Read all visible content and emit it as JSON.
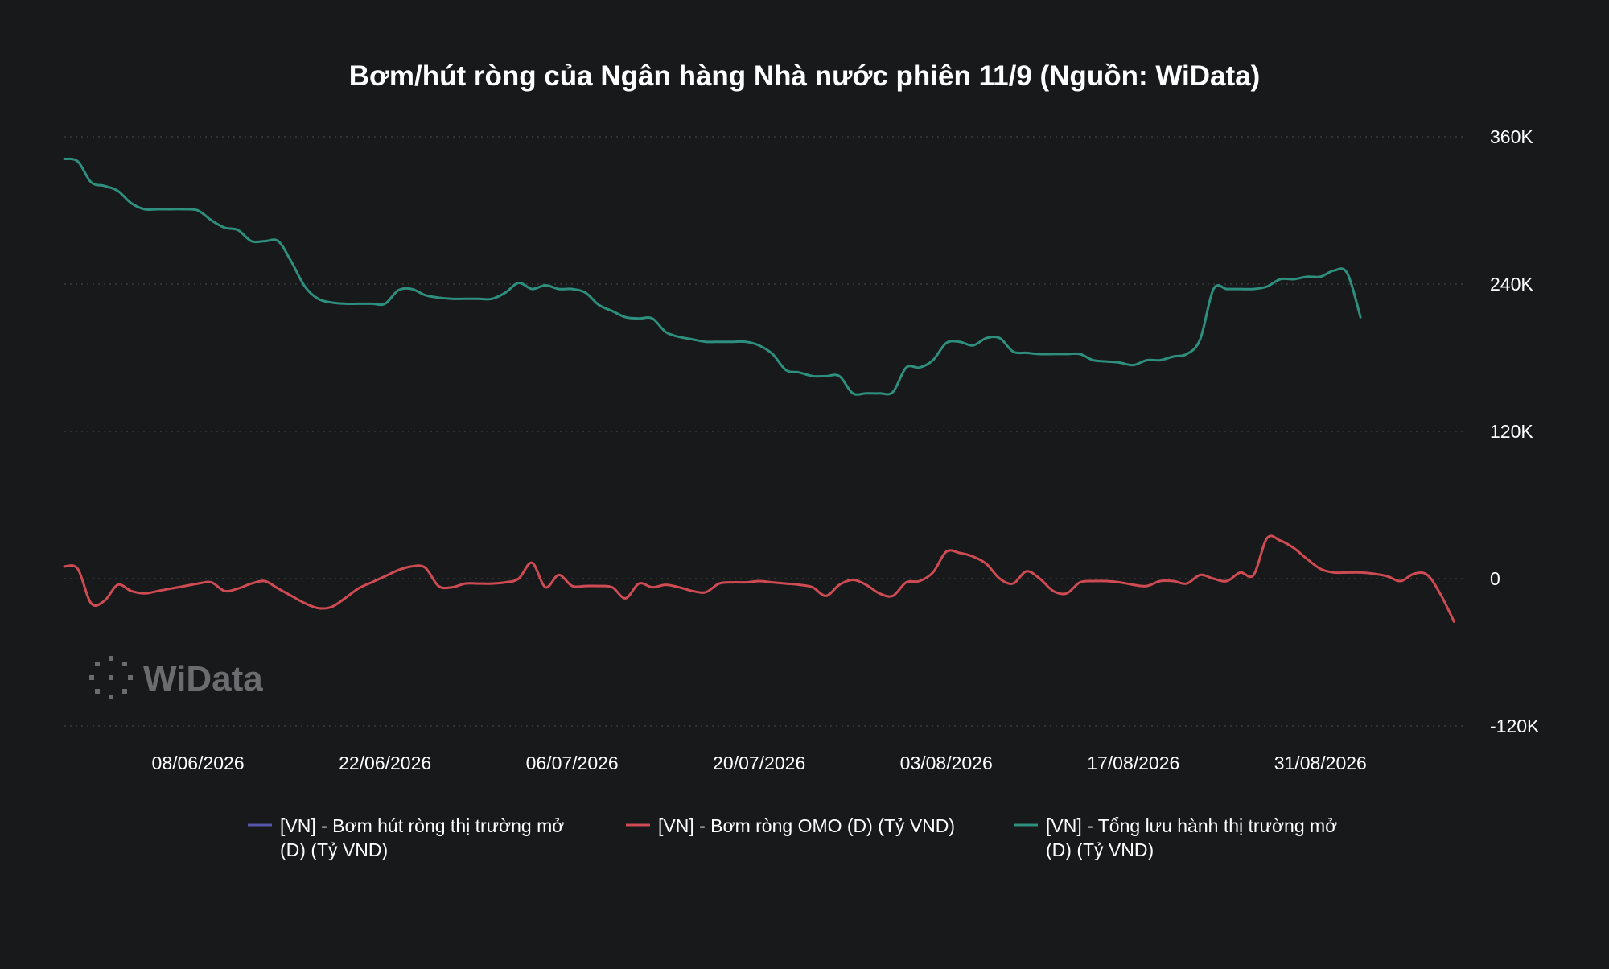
{
  "chart_data": {
    "type": "line",
    "title": "Bơm/hút ròng của Ngân hàng Nhà nước phiên 11/9 (Nguồn: WiData)",
    "xlabel": "",
    "ylabel": "",
    "ylim": [
      -120000,
      360000
    ],
    "y_ticks": [
      {
        "value": 360000,
        "label": "360K"
      },
      {
        "value": 240000,
        "label": "240K"
      },
      {
        "value": 120000,
        "label": "120K"
      },
      {
        "value": 0,
        "label": "0"
      },
      {
        "value": -120000,
        "label": "-120K"
      }
    ],
    "x_range": [
      "2026-05-29",
      "2026-09-11"
    ],
    "x_ticks": [
      {
        "date": "2026-06-08",
        "label": "08/06/2026"
      },
      {
        "date": "2026-06-22",
        "label": "22/06/2026"
      },
      {
        "date": "2026-07-06",
        "label": "06/07/2026"
      },
      {
        "date": "2026-07-20",
        "label": "20/07/2026"
      },
      {
        "date": "2026-08-03",
        "label": "03/08/2026"
      },
      {
        "date": "2026-08-17",
        "label": "17/08/2026"
      },
      {
        "date": "2026-08-31",
        "label": "31/08/2026"
      }
    ],
    "grid": true,
    "legend_position": "bottom",
    "series": [
      {
        "name": "[VN] - Bơm hút ròng thị trường mở (D) (Tỷ VND)",
        "legend_lines": [
          "[VN] - Bơm hút ròng thị trường mở",
          "(D) (Tỷ VND)"
        ],
        "color": "#5556a8",
        "points": []
      },
      {
        "name": "[VN] - Bơm ròng OMO (D) (Tỷ VND)",
        "legend_lines": [
          "[VN] - Bơm ròng OMO (D) (Tỷ VND)"
        ],
        "color": "#cf4b53",
        "points": [
          [
            "2026-05-29",
            10000
          ],
          [
            "2026-05-30",
            8000
          ],
          [
            "2026-05-31",
            -20000
          ],
          [
            "2026-06-01",
            -18000
          ],
          [
            "2026-06-02",
            -5000
          ],
          [
            "2026-06-03",
            -10000
          ],
          [
            "2026-06-04",
            -12000
          ],
          [
            "2026-06-05",
            -10000
          ],
          [
            "2026-06-06",
            -8000
          ],
          [
            "2026-06-07",
            -6000
          ],
          [
            "2026-06-08",
            -4000
          ],
          [
            "2026-06-09",
            -3000
          ],
          [
            "2026-06-10",
            -10000
          ],
          [
            "2026-06-11",
            -8000
          ],
          [
            "2026-06-12",
            -4000
          ],
          [
            "2026-06-13",
            -2000
          ],
          [
            "2026-06-14",
            -8000
          ],
          [
            "2026-06-15",
            -14000
          ],
          [
            "2026-06-16",
            -20000
          ],
          [
            "2026-06-17",
            -24000
          ],
          [
            "2026-06-18",
            -23000
          ],
          [
            "2026-06-19",
            -16000
          ],
          [
            "2026-06-20",
            -8000
          ],
          [
            "2026-06-21",
            -3000
          ],
          [
            "2026-06-22",
            2000
          ],
          [
            "2026-06-23",
            7000
          ],
          [
            "2026-06-24",
            10000
          ],
          [
            "2026-06-25",
            9000
          ],
          [
            "2026-06-26",
            -6000
          ],
          [
            "2026-06-27",
            -7000
          ],
          [
            "2026-06-28",
            -4000
          ],
          [
            "2026-06-29",
            -4000
          ],
          [
            "2026-06-30",
            -4000
          ],
          [
            "2026-07-01",
            -3000
          ],
          [
            "2026-07-02",
            0
          ],
          [
            "2026-07-03",
            13000
          ],
          [
            "2026-07-04",
            -7000
          ],
          [
            "2026-07-05",
            3000
          ],
          [
            "2026-07-06",
            -6000
          ],
          [
            "2026-07-07",
            -6000
          ],
          [
            "2026-07-08",
            -6000
          ],
          [
            "2026-07-09",
            -7000
          ],
          [
            "2026-07-10",
            -16000
          ],
          [
            "2026-07-11",
            -4000
          ],
          [
            "2026-07-12",
            -7000
          ],
          [
            "2026-07-13",
            -5000
          ],
          [
            "2026-07-14",
            -7000
          ],
          [
            "2026-07-15",
            -10000
          ],
          [
            "2026-07-16",
            -11000
          ],
          [
            "2026-07-17",
            -4000
          ],
          [
            "2026-07-18",
            -3000
          ],
          [
            "2026-07-19",
            -3000
          ],
          [
            "2026-07-20",
            -2000
          ],
          [
            "2026-07-21",
            -3000
          ],
          [
            "2026-07-22",
            -4000
          ],
          [
            "2026-07-23",
            -5000
          ],
          [
            "2026-07-24",
            -7000
          ],
          [
            "2026-07-25",
            -14000
          ],
          [
            "2026-07-26",
            -5000
          ],
          [
            "2026-07-27",
            -1000
          ],
          [
            "2026-07-28",
            -5000
          ],
          [
            "2026-07-29",
            -12000
          ],
          [
            "2026-07-30",
            -14000
          ],
          [
            "2026-07-31",
            -3000
          ],
          [
            "2026-08-01",
            -2000
          ],
          [
            "2026-08-02",
            5000
          ],
          [
            "2026-08-03",
            22000
          ],
          [
            "2026-08-04",
            21000
          ],
          [
            "2026-08-05",
            18000
          ],
          [
            "2026-08-06",
            12000
          ],
          [
            "2026-08-07",
            0
          ],
          [
            "2026-08-08",
            -4000
          ],
          [
            "2026-08-09",
            6000
          ],
          [
            "2026-08-10",
            0
          ],
          [
            "2026-08-11",
            -10000
          ],
          [
            "2026-08-12",
            -12000
          ],
          [
            "2026-08-13",
            -3000
          ],
          [
            "2026-08-14",
            -2000
          ],
          [
            "2026-08-15",
            -2000
          ],
          [
            "2026-08-16",
            -3000
          ],
          [
            "2026-08-17",
            -5000
          ],
          [
            "2026-08-18",
            -6000
          ],
          [
            "2026-08-19",
            -2000
          ],
          [
            "2026-08-20",
            -2000
          ],
          [
            "2026-08-21",
            -4000
          ],
          [
            "2026-08-22",
            3000
          ],
          [
            "2026-08-23",
            0
          ],
          [
            "2026-08-24",
            -2000
          ],
          [
            "2026-08-25",
            5000
          ],
          [
            "2026-08-26",
            3000
          ],
          [
            "2026-08-27",
            33000
          ],
          [
            "2026-08-28",
            31000
          ],
          [
            "2026-08-29",
            25000
          ],
          [
            "2026-08-30",
            16000
          ],
          [
            "2026-08-31",
            8000
          ],
          [
            "2026-09-01",
            5000
          ],
          [
            "2026-09-02",
            5000
          ],
          [
            "2026-09-03",
            5000
          ],
          [
            "2026-09-04",
            4000
          ],
          [
            "2026-09-05",
            2000
          ],
          [
            "2026-09-06",
            -2000
          ],
          [
            "2026-09-07",
            4000
          ],
          [
            "2026-09-08",
            3000
          ],
          [
            "2026-09-09",
            -13000
          ],
          [
            "2026-09-10",
            -35000
          ]
        ]
      },
      {
        "name": "[VN] - Tổng lưu hành thị trường mở (D) (Tỷ VND)",
        "legend_lines": [
          "[VN] - Tổng lưu hành thị trường mở",
          " (D) (Tỷ VND)"
        ],
        "color": "#2e8f7e",
        "points": [
          [
            "2026-05-29",
            342000
          ],
          [
            "2026-05-30",
            340000
          ],
          [
            "2026-05-31",
            323000
          ],
          [
            "2026-06-01",
            320000
          ],
          [
            "2026-06-02",
            316000
          ],
          [
            "2026-06-03",
            306000
          ],
          [
            "2026-06-04",
            301000
          ],
          [
            "2026-06-05",
            301000
          ],
          [
            "2026-06-06",
            301000
          ],
          [
            "2026-06-07",
            301000
          ],
          [
            "2026-06-08",
            300000
          ],
          [
            "2026-06-09",
            292000
          ],
          [
            "2026-06-10",
            286000
          ],
          [
            "2026-06-11",
            284000
          ],
          [
            "2026-06-12",
            275000
          ],
          [
            "2026-06-13",
            275000
          ],
          [
            "2026-06-14",
            275000
          ],
          [
            "2026-06-15",
            258000
          ],
          [
            "2026-06-16",
            238000
          ],
          [
            "2026-06-17",
            228000
          ],
          [
            "2026-06-18",
            225000
          ],
          [
            "2026-06-19",
            224000
          ],
          [
            "2026-06-20",
            224000
          ],
          [
            "2026-06-21",
            224000
          ],
          [
            "2026-06-22",
            224000
          ],
          [
            "2026-06-23",
            235000
          ],
          [
            "2026-06-24",
            236000
          ],
          [
            "2026-06-25",
            231000
          ],
          [
            "2026-06-26",
            229000
          ],
          [
            "2026-06-27",
            228000
          ],
          [
            "2026-06-28",
            228000
          ],
          [
            "2026-06-29",
            228000
          ],
          [
            "2026-06-30",
            228000
          ],
          [
            "2026-07-01",
            233000
          ],
          [
            "2026-07-02",
            241000
          ],
          [
            "2026-07-03",
            236000
          ],
          [
            "2026-07-04",
            239000
          ],
          [
            "2026-07-05",
            236000
          ],
          [
            "2026-07-06",
            236000
          ],
          [
            "2026-07-07",
            233000
          ],
          [
            "2026-07-08",
            223000
          ],
          [
            "2026-07-09",
            218000
          ],
          [
            "2026-07-10",
            213000
          ],
          [
            "2026-07-11",
            212000
          ],
          [
            "2026-07-12",
            212000
          ],
          [
            "2026-07-13",
            201000
          ],
          [
            "2026-07-14",
            197000
          ],
          [
            "2026-07-15",
            195000
          ],
          [
            "2026-07-16",
            193000
          ],
          [
            "2026-07-17",
            193000
          ],
          [
            "2026-07-18",
            193000
          ],
          [
            "2026-07-19",
            193000
          ],
          [
            "2026-07-20",
            190000
          ],
          [
            "2026-07-21",
            183000
          ],
          [
            "2026-07-22",
            170000
          ],
          [
            "2026-07-23",
            168000
          ],
          [
            "2026-07-24",
            165000
          ],
          [
            "2026-07-25",
            165000
          ],
          [
            "2026-07-26",
            165000
          ],
          [
            "2026-07-27",
            151000
          ],
          [
            "2026-07-28",
            151000
          ],
          [
            "2026-07-29",
            151000
          ],
          [
            "2026-07-30",
            152000
          ],
          [
            "2026-07-31",
            172000
          ],
          [
            "2026-08-01",
            172000
          ],
          [
            "2026-08-02",
            178000
          ],
          [
            "2026-08-03",
            192000
          ],
          [
            "2026-08-04",
            193000
          ],
          [
            "2026-08-05",
            190000
          ],
          [
            "2026-08-06",
            196000
          ],
          [
            "2026-08-07",
            196000
          ],
          [
            "2026-08-08",
            185000
          ],
          [
            "2026-08-09",
            184000
          ],
          [
            "2026-08-10",
            183000
          ],
          [
            "2026-08-11",
            183000
          ],
          [
            "2026-08-12",
            183000
          ],
          [
            "2026-08-13",
            183000
          ],
          [
            "2026-08-14",
            178000
          ],
          [
            "2026-08-15",
            177000
          ],
          [
            "2026-08-16",
            176000
          ],
          [
            "2026-08-17",
            174000
          ],
          [
            "2026-08-18",
            178000
          ],
          [
            "2026-08-19",
            178000
          ],
          [
            "2026-08-20",
            181000
          ],
          [
            "2026-08-21",
            183000
          ],
          [
            "2026-08-22",
            195000
          ],
          [
            "2026-08-23",
            236000
          ],
          [
            "2026-08-24",
            236000
          ],
          [
            "2026-08-25",
            236000
          ],
          [
            "2026-08-26",
            236000
          ],
          [
            "2026-08-27",
            238000
          ],
          [
            "2026-08-28",
            244000
          ],
          [
            "2026-08-29",
            244000
          ],
          [
            "2026-08-30",
            246000
          ],
          [
            "2026-08-31",
            246000
          ],
          [
            "2026-09-01",
            251000
          ],
          [
            "2026-09-02",
            249000
          ],
          [
            "2026-09-03",
            213000
          ]
        ]
      }
    ]
  },
  "watermark": {
    "text": "WiData"
  }
}
